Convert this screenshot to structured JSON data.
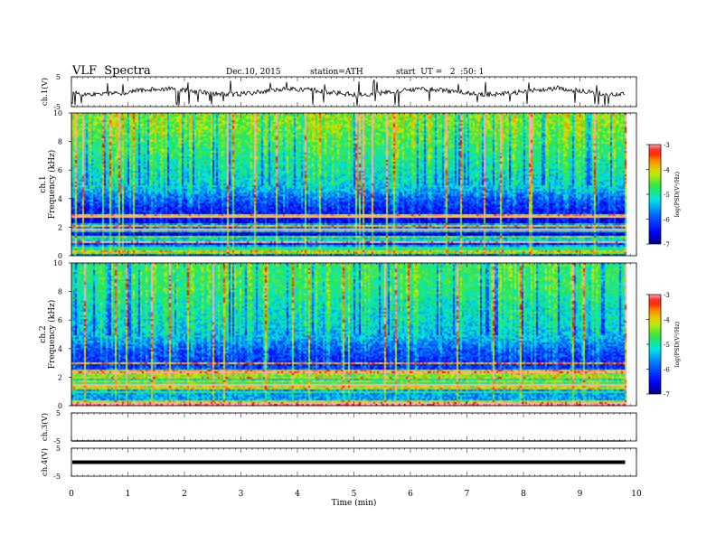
{
  "header": {
    "title": "VLF  Spectra",
    "date": "Dec.10, 2015",
    "station": "station=ATH",
    "start": "start  UT =   2  :50: 1"
  },
  "chart_data": {
    "type": "heatmap",
    "time_axis": {
      "xlabel": "Time  (min)",
      "xlim": [
        0,
        10
      ],
      "ticks": [
        "0",
        "1",
        "2",
        "3",
        "4",
        "5",
        "6",
        "7",
        "8",
        "9",
        "10"
      ]
    },
    "panels": [
      {
        "kind": "waveform",
        "ylabel": "ch.1(V)",
        "ylim": [
          -5,
          5
        ],
        "tick_labels": [
          "5",
          "-5"
        ],
        "baseline": 0,
        "data_end_min": 9.8
      },
      {
        "kind": "spectrogram",
        "ylabel_channel": "ch.1",
        "ylabel": "Frequency  (kHz)",
        "ylim": [
          0,
          10
        ],
        "tick_labels": [
          "0",
          "2",
          "4",
          "6",
          "8",
          "10"
        ],
        "data_end_min": 9.8,
        "colorbar": {
          "label": "log(PSD(V²/Hz)",
          "range": [
            -7,
            -3
          ],
          "tick_labels": [
            "-3",
            "-4",
            "-5",
            "-6",
            "-7"
          ]
        },
        "profile_kHz": [
          0,
          1,
          2,
          3,
          4,
          5,
          6,
          7,
          8,
          9,
          10
        ],
        "profile_logPSD": [
          -5.8,
          -6.4,
          -6.7,
          -6.5,
          -6.0,
          -5.3,
          -5.1,
          -4.9,
          -4.7,
          -4.5,
          -4.4
        ]
      },
      {
        "kind": "spectrogram",
        "ylabel_channel": "ch.2",
        "ylabel": "Frequency  (kHz)",
        "ylim": [
          0,
          10
        ],
        "tick_labels": [
          "0",
          "2",
          "4",
          "6",
          "8",
          "10"
        ],
        "data_end_min": 9.8,
        "colorbar": {
          "label": "log(PSD(V²/Hz)",
          "range": [
            -7,
            -3
          ],
          "tick_labels": [
            "-3",
            "-4",
            "-5",
            "-6",
            "-7"
          ]
        },
        "profile_kHz": [
          0,
          1,
          2,
          3,
          4,
          5,
          6,
          7,
          8,
          9,
          10
        ],
        "profile_logPSD": [
          -5.6,
          -5.6,
          -5.7,
          -6.3,
          -6.0,
          -5.4,
          -5.2,
          -5.1,
          -4.9,
          -4.8,
          -4.8
        ]
      },
      {
        "kind": "waveform",
        "ylabel": "ch.3(V)",
        "ylim": [
          -5,
          5
        ],
        "tick_labels": [
          "5",
          "-5"
        ],
        "baseline": -5,
        "data_end_min": 9.8
      },
      {
        "kind": "waveform",
        "ylabel": "ch.4(V)",
        "ylim": [
          -5,
          5
        ],
        "tick_labels": [
          "5",
          "-5"
        ],
        "baseline": 0,
        "data_end_min": 9.8
      }
    ]
  }
}
